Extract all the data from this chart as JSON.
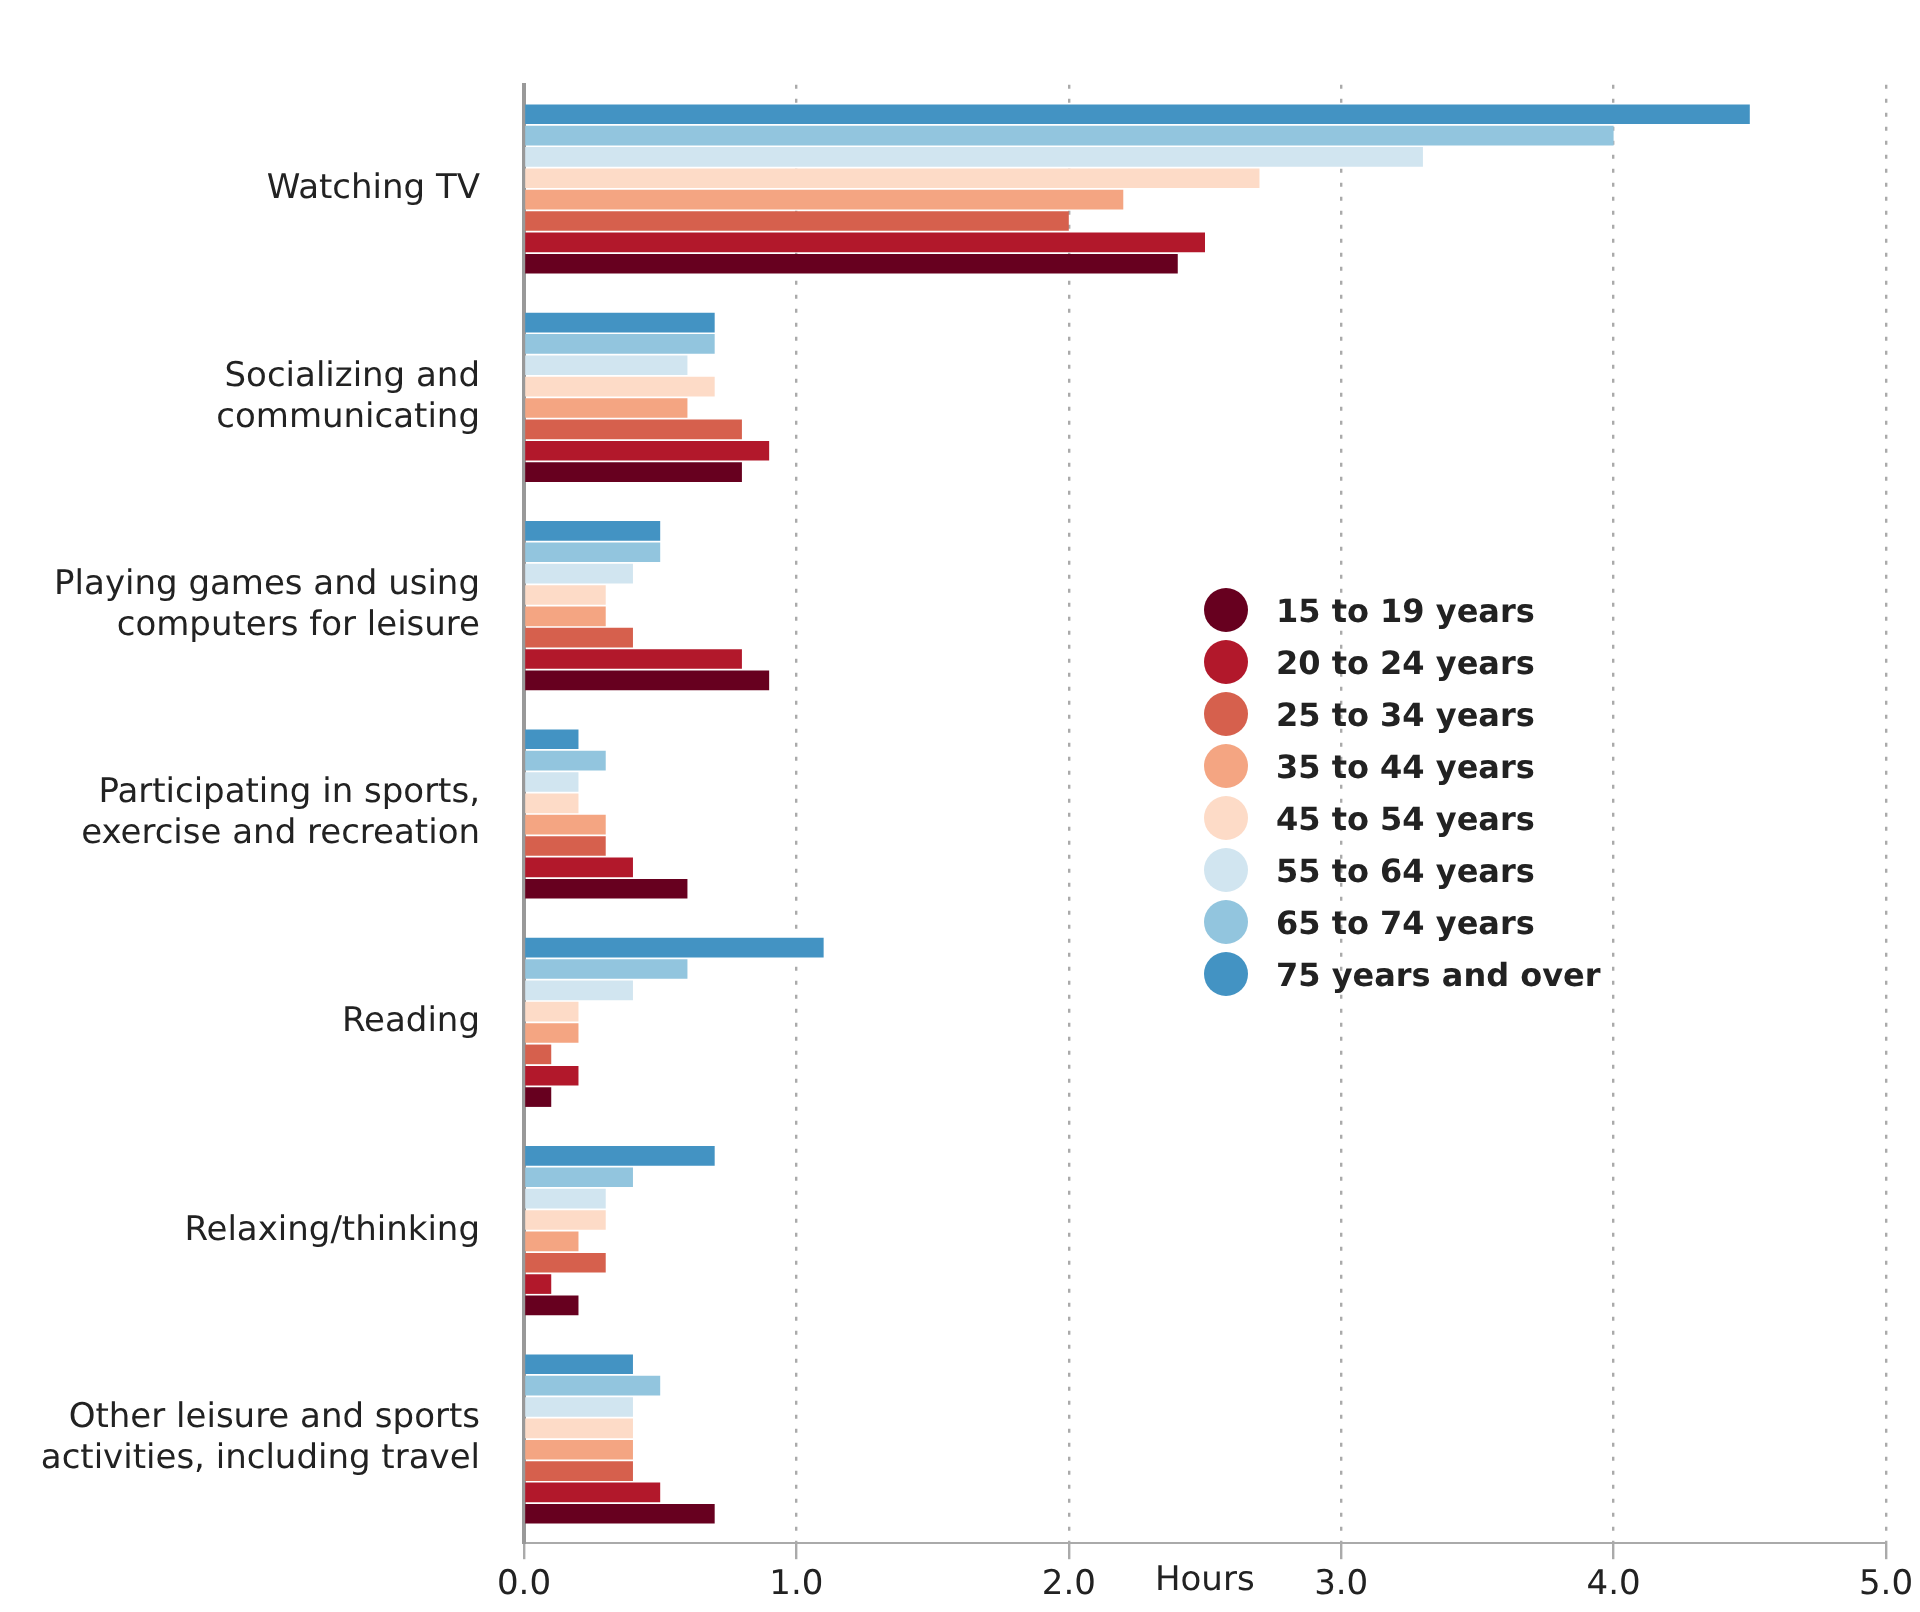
{
  "chart_data": {
    "type": "bar",
    "orientation": "horizontal",
    "xlabel": "Hours",
    "categories": [
      "Watching TV",
      "Socializing and communicating",
      "Playing games and using computers for leisure",
      "Participating in sports, exercise and recreation",
      "Reading",
      "Relaxing/thinking",
      "Other leisure and sports activities, including travel"
    ],
    "series": [
      {
        "name": "15 to 19 years",
        "color": "#67001f",
        "values": [
          2.4,
          0.8,
          0.9,
          0.6,
          0.1,
          0.2,
          0.7
        ]
      },
      {
        "name": "20 to 24 years",
        "color": "#b2182b",
        "values": [
          2.5,
          0.9,
          0.8,
          0.4,
          0.2,
          0.1,
          0.5
        ]
      },
      {
        "name": "25 to 34 years",
        "color": "#d6604d",
        "values": [
          2.0,
          0.8,
          0.4,
          0.3,
          0.1,
          0.3,
          0.4
        ]
      },
      {
        "name": "35 to 44 years",
        "color": "#f4a582",
        "values": [
          2.2,
          0.6,
          0.3,
          0.3,
          0.2,
          0.2,
          0.4
        ]
      },
      {
        "name": "45 to 54 years",
        "color": "#fddbc7",
        "values": [
          2.7,
          0.7,
          0.3,
          0.2,
          0.2,
          0.3,
          0.4
        ]
      },
      {
        "name": "55 to 64 years",
        "color": "#d1e5f0",
        "values": [
          3.3,
          0.6,
          0.4,
          0.2,
          0.4,
          0.3,
          0.4
        ]
      },
      {
        "name": "65 to 74 years",
        "color": "#92c5de",
        "values": [
          4.0,
          0.7,
          0.5,
          0.3,
          0.6,
          0.4,
          0.5
        ]
      },
      {
        "name": "75 years and over",
        "color": "#4393c3",
        "values": [
          4.5,
          0.7,
          0.5,
          0.2,
          1.1,
          0.7,
          0.4
        ]
      }
    ],
    "xlim": [
      0,
      5
    ],
    "xticks": [
      {
        "value": 0,
        "label": "0.0"
      },
      {
        "value": 1,
        "label": "1.0"
      },
      {
        "value": 2,
        "label": "2.0"
      },
      {
        "value": 3,
        "label": "3.0"
      },
      {
        "value": 4,
        "label": "4.0"
      },
      {
        "value": 5,
        "label": "5.0"
      }
    ],
    "grid": "x",
    "legend": "right"
  }
}
